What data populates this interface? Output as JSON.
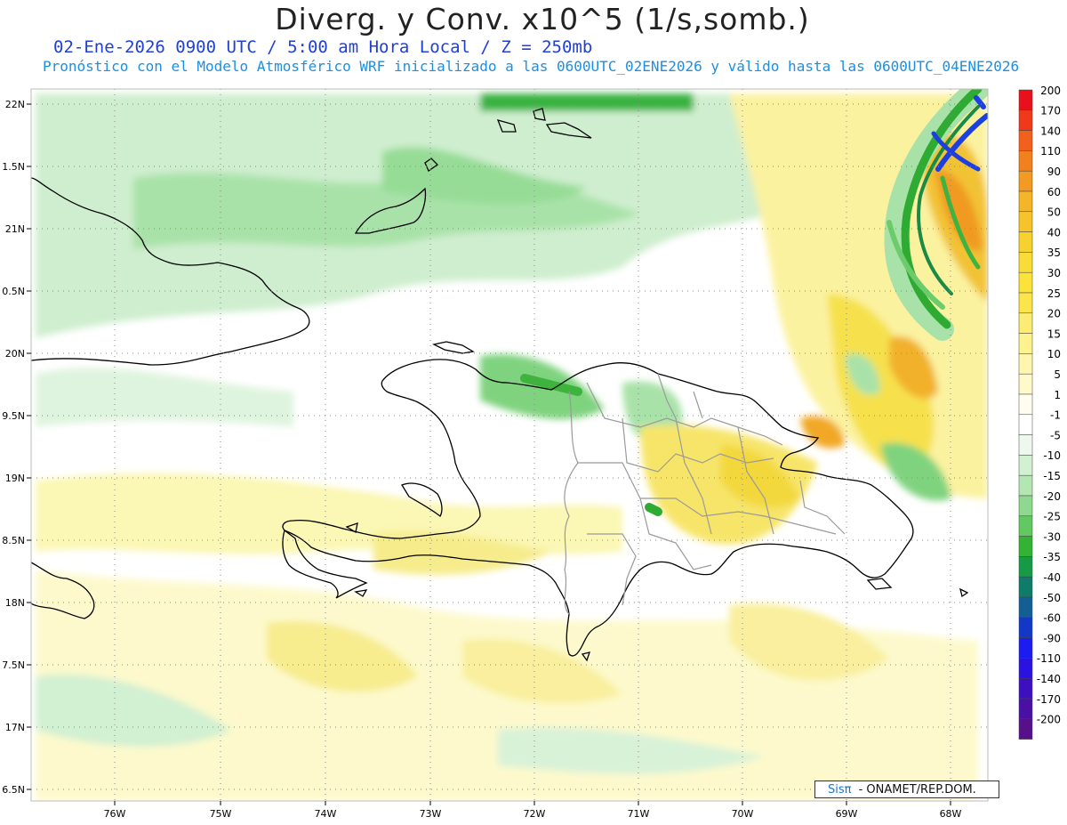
{
  "header": {
    "title": "Diverg. y Conv. x10^5 (1/s,somb.)",
    "subtitle1": "02-Ene-2026  0900 UTC / 5:00 am Hora Local / Z = 250mb",
    "subtitle2": "Pronóstico con el Modelo Atmosférico WRF inicializado a las 0600UTC_02ENE2026 y válido hasta las  0600UTC_04ENE2026"
  },
  "map": {
    "lat_labels": [
      "22N",
      "1.5N",
      "21N",
      "0.5N",
      "20N",
      "9.5N",
      "19N",
      "8.5N",
      "18N",
      "7.5N",
      "17N",
      "6.5N"
    ],
    "lon_labels": [
      "76W",
      "75W",
      "74W",
      "73W",
      "72W",
      "71W",
      "70W",
      "69W",
      "68W"
    ],
    "colors": {
      "light_green": "#c8ecc8",
      "green": "#96dc96",
      "dark_green": "#2eaa2e",
      "light_yellow": "#fbf7b4",
      "yellow": "#f6e566",
      "orange": "#f2b12a",
      "blue": "#1e3fe0",
      "coast": "#000000",
      "borders": "#9a9a9a"
    }
  },
  "colorbar": {
    "labels": [
      "200",
      "170",
      "140",
      "110",
      "90",
      "60",
      "50",
      "40",
      "35",
      "30",
      "25",
      "20",
      "15",
      "10",
      "5",
      "1",
      "-1",
      "-5",
      "-10",
      "-15",
      "-20",
      "-25",
      "-30",
      "-35",
      "-40",
      "-50",
      "-60",
      "-90",
      "-110",
      "-140",
      "-170",
      "-200"
    ],
    "colors": [
      "#e8101a",
      "#f0381a",
      "#f2601c",
      "#f2801e",
      "#f39a22",
      "#f5b528",
      "#f6c42a",
      "#f7d22e",
      "#f9dc36",
      "#fbe33a",
      "#fbe54a",
      "#fcec72",
      "#fdf28e",
      "#fef6ae",
      "#fff9cc",
      "#fffdf0",
      "#ffffff",
      "#eef8ee",
      "#d2f0d2",
      "#b4e6b4",
      "#8fd88f",
      "#62c862",
      "#33b233",
      "#169a46",
      "#0f7b6a",
      "#135f94",
      "#1238c8",
      "#1b1cf0",
      "#2a12e0",
      "#3c10c0",
      "#4a10a4",
      "#56108a"
    ]
  },
  "footer": {
    "logo": "Sisπ",
    "credit": " - ONAMET/REP.DOM."
  }
}
